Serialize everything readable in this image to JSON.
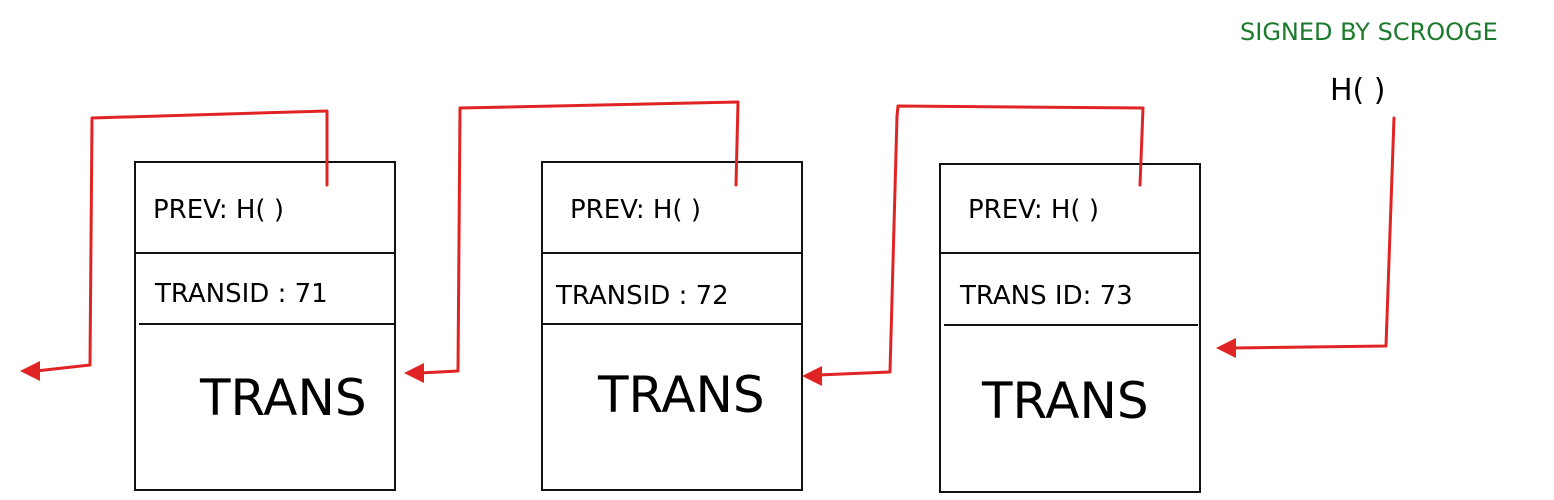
{
  "caption": "SIGNED BY SCROOGE",
  "hash_label": "H(  )",
  "blocks": [
    {
      "prev": "PREV: H(  )",
      "transid": "TRANSID : 71",
      "body": "TRANS"
    },
    {
      "prev": "PREV: H(  )",
      "transid": "TRANSID : 72",
      "body": "TRANS"
    },
    {
      "prev": "PREV: H(  )",
      "transid": "TRANS ID: 73",
      "body": "TRANS"
    }
  ],
  "colors": {
    "pointer": "#e02424",
    "caption": "#1c7a2c",
    "ink": "#111111"
  }
}
